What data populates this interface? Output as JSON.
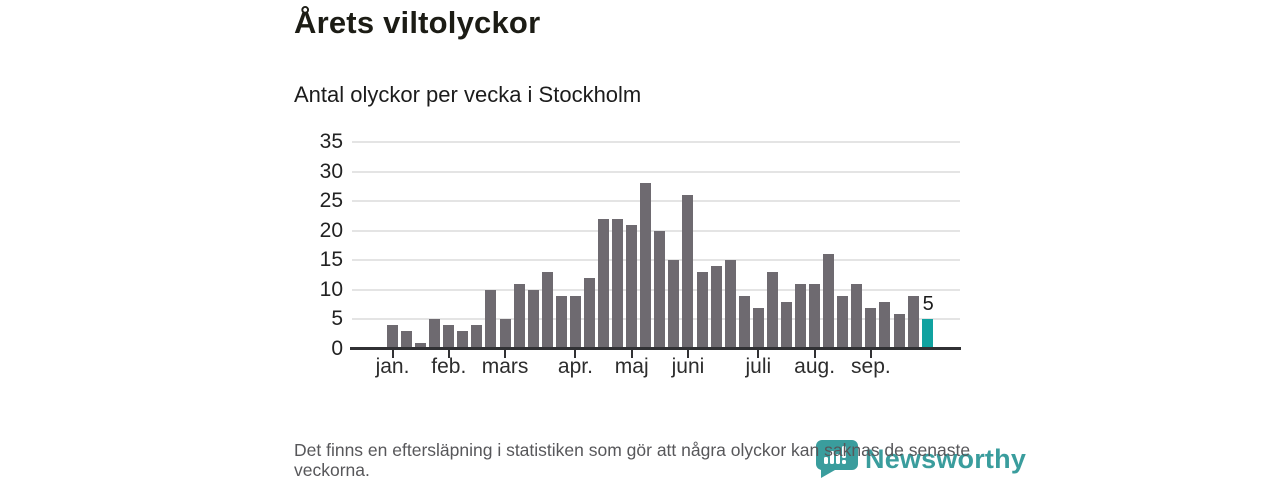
{
  "title": "Årets viltolyckor",
  "subtitle": "Antal olyckor per vecka i Stockholm",
  "footnote": "Det finns en eftersläpning i statistiken som gör att några olyckor kan saknas de senaste veckorna.",
  "logo": {
    "name": "Newsworthy"
  },
  "colors": {
    "bar": "#6e6a70",
    "highlight_bar": "#10a2a0",
    "gridline": "#e4e4e4",
    "axis": "#313134",
    "logo_teal": "#3a9d9d"
  },
  "chart_data": {
    "type": "bar",
    "title": "Årets viltolyckor",
    "subtitle": "Antal olyckor per vecka i Stockholm",
    "x_unit": "vecka (week)",
    "ylabel": "",
    "xlabel": "",
    "ylim": [
      0,
      35
    ],
    "yticks": [
      0,
      5,
      10,
      15,
      20,
      25,
      30,
      35
    ],
    "grid": "horizontal",
    "values": [
      4,
      3,
      1,
      5,
      4,
      3,
      4,
      10,
      5,
      11,
      10,
      13,
      9,
      9,
      12,
      22,
      22,
      21,
      28,
      20,
      15,
      26,
      13,
      14,
      15,
      9,
      7,
      13,
      8,
      11,
      11,
      16,
      9,
      11,
      7,
      8,
      6,
      9,
      5
    ],
    "highlight_last": true,
    "last_value_label": "5",
    "month_ticks": [
      {
        "label": "jan.",
        "week_index": 0
      },
      {
        "label": "feb.",
        "week_index": 4
      },
      {
        "label": "mars",
        "week_index": 8
      },
      {
        "label": "apr.",
        "week_index": 13
      },
      {
        "label": "maj",
        "week_index": 17
      },
      {
        "label": "juni",
        "week_index": 21
      },
      {
        "label": "juli",
        "week_index": 26
      },
      {
        "label": "aug.",
        "week_index": 30
      },
      {
        "label": "sep.",
        "week_index": 34
      }
    ]
  }
}
